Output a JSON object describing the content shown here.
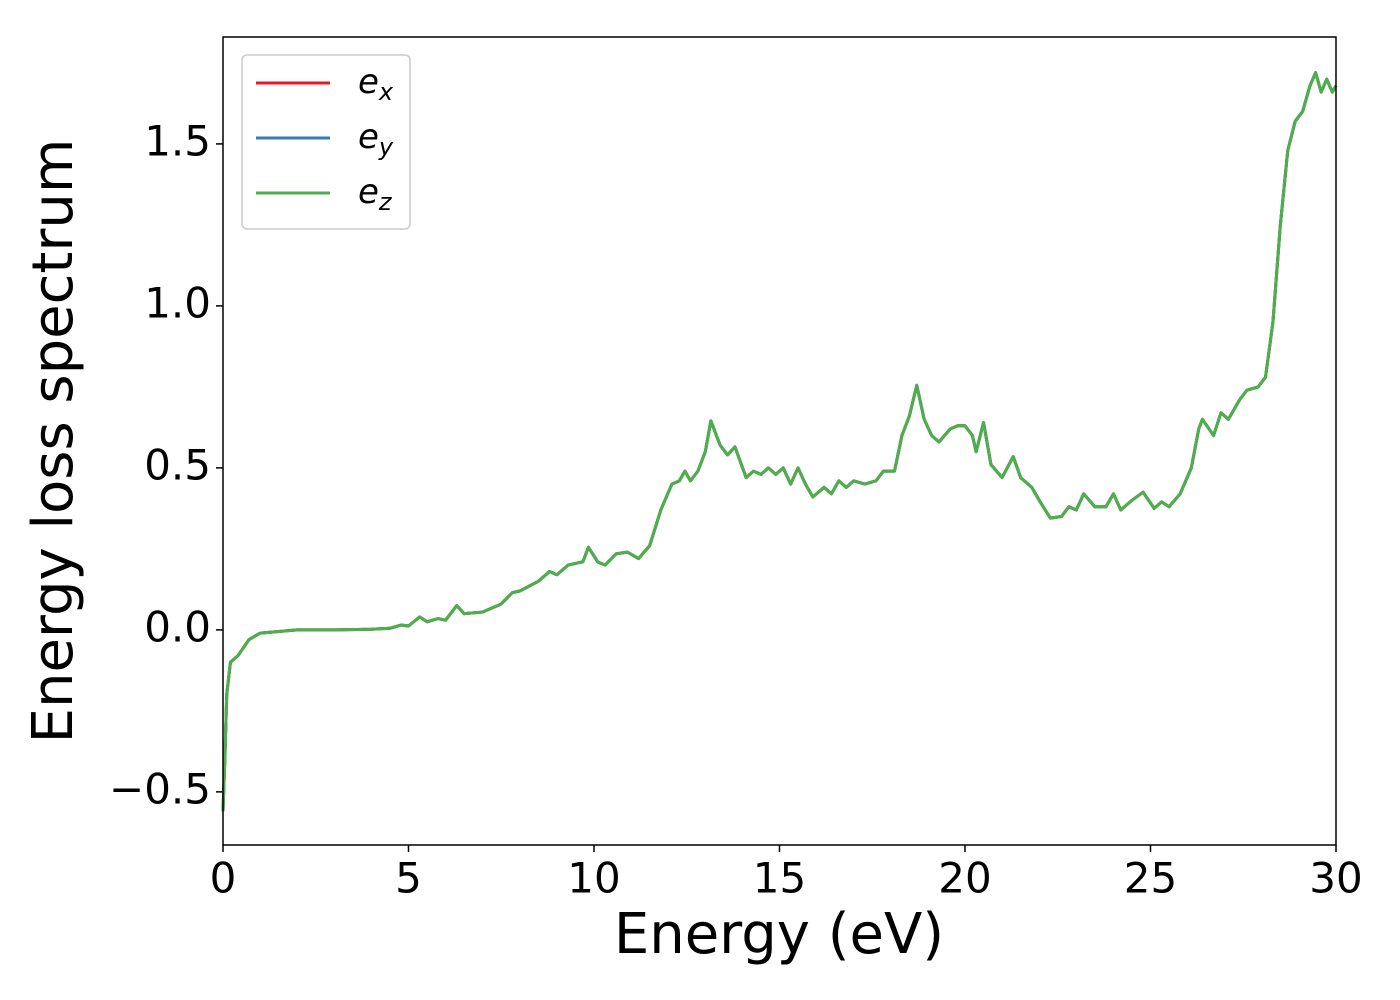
{
  "chart_data": {
    "type": "line",
    "xlabel": "Energy (eV)",
    "ylabel": "Energy loss spectrum",
    "x": [
      0,
      0.05,
      0.1,
      0.2,
      0.4,
      0.7,
      1.0,
      1.5,
      2,
      3,
      4,
      4.5,
      4.8,
      5.0,
      5.3,
      5.5,
      5.8,
      6.0,
      6.3,
      6.5,
      7,
      7.5,
      7.8,
      8.0,
      8.5,
      8.8,
      9.0,
      9.3,
      9.7,
      9.85,
      10.1,
      10.3,
      10.6,
      10.9,
      11.2,
      11.5,
      11.8,
      12.1,
      12.3,
      12.45,
      12.6,
      12.8,
      13.0,
      13.15,
      13.4,
      13.6,
      13.8,
      14.1,
      14.3,
      14.5,
      14.7,
      14.9,
      15.1,
      15.3,
      15.5,
      15.7,
      15.9,
      16.2,
      16.4,
      16.6,
      16.8,
      17.0,
      17.3,
      17.6,
      17.8,
      18.1,
      18.3,
      18.5,
      18.7,
      18.9,
      19.1,
      19.3,
      19.6,
      19.8,
      20.0,
      20.2,
      20.3,
      20.5,
      20.7,
      21.0,
      21.3,
      21.5,
      21.8,
      22.0,
      22.3,
      22.6,
      22.8,
      23.0,
      23.2,
      23.5,
      23.8,
      24.0,
      24.2,
      24.5,
      24.8,
      25.1,
      25.3,
      25.5,
      25.8,
      26.1,
      26.3,
      26.4,
      26.7,
      26.9,
      27.1,
      27.4,
      27.6,
      27.9,
      28.1,
      28.3,
      28.5,
      28.7,
      28.9,
      29.1,
      29.3,
      29.45,
      29.6,
      29.75,
      29.9,
      30.0
    ],
    "series": [
      {
        "name": "e_x",
        "color": "#e41a1c",
        "values": [
          -0.56,
          -0.4,
          -0.2,
          -0.1,
          -0.08,
          -0.03,
          -0.01,
          -0.005,
          0,
          0,
          0.002,
          0.005,
          0.015,
          0.012,
          0.04,
          0.025,
          0.035,
          0.03,
          0.075,
          0.05,
          0.055,
          0.08,
          0.115,
          0.12,
          0.15,
          0.18,
          0.17,
          0.2,
          0.21,
          0.255,
          0.21,
          0.2,
          0.235,
          0.24,
          0.22,
          0.26,
          0.37,
          0.45,
          0.46,
          0.49,
          0.46,
          0.49,
          0.55,
          0.645,
          0.57,
          0.54,
          0.565,
          0.47,
          0.49,
          0.48,
          0.5,
          0.48,
          0.5,
          0.45,
          0.5,
          0.45,
          0.41,
          0.44,
          0.42,
          0.46,
          0.44,
          0.46,
          0.45,
          0.46,
          0.49,
          0.49,
          0.6,
          0.66,
          0.755,
          0.65,
          0.6,
          0.58,
          0.62,
          0.63,
          0.63,
          0.6,
          0.55,
          0.64,
          0.51,
          0.47,
          0.535,
          0.47,
          0.44,
          0.4,
          0.345,
          0.35,
          0.38,
          0.37,
          0.42,
          0.38,
          0.38,
          0.42,
          0.37,
          0.4,
          0.425,
          0.375,
          0.395,
          0.38,
          0.42,
          0.5,
          0.62,
          0.65,
          0.6,
          0.67,
          0.65,
          0.71,
          0.74,
          0.75,
          0.78,
          0.95,
          1.25,
          1.48,
          1.57,
          1.6,
          1.68,
          1.72,
          1.66,
          1.7,
          1.66,
          1.68
        ]
      },
      {
        "name": "e_y",
        "color": "#377eb8",
        "values": [
          -0.56,
          -0.4,
          -0.2,
          -0.1,
          -0.08,
          -0.03,
          -0.01,
          -0.005,
          0,
          0,
          0.002,
          0.005,
          0.015,
          0.012,
          0.04,
          0.025,
          0.035,
          0.03,
          0.075,
          0.05,
          0.055,
          0.08,
          0.115,
          0.12,
          0.15,
          0.18,
          0.17,
          0.2,
          0.21,
          0.255,
          0.21,
          0.2,
          0.235,
          0.24,
          0.22,
          0.26,
          0.37,
          0.45,
          0.46,
          0.49,
          0.46,
          0.49,
          0.55,
          0.645,
          0.57,
          0.54,
          0.565,
          0.47,
          0.49,
          0.48,
          0.5,
          0.48,
          0.5,
          0.45,
          0.5,
          0.45,
          0.41,
          0.44,
          0.42,
          0.46,
          0.44,
          0.46,
          0.45,
          0.46,
          0.49,
          0.49,
          0.6,
          0.66,
          0.755,
          0.65,
          0.6,
          0.58,
          0.62,
          0.63,
          0.63,
          0.6,
          0.55,
          0.64,
          0.51,
          0.47,
          0.535,
          0.47,
          0.44,
          0.4,
          0.345,
          0.35,
          0.38,
          0.37,
          0.42,
          0.38,
          0.38,
          0.42,
          0.37,
          0.4,
          0.425,
          0.375,
          0.395,
          0.38,
          0.42,
          0.5,
          0.62,
          0.65,
          0.6,
          0.67,
          0.65,
          0.71,
          0.74,
          0.75,
          0.78,
          0.95,
          1.25,
          1.48,
          1.57,
          1.6,
          1.68,
          1.72,
          1.66,
          1.7,
          1.66,
          1.68
        ]
      },
      {
        "name": "e_z",
        "color": "#4daf4a",
        "values": [
          -0.56,
          -0.4,
          -0.2,
          -0.1,
          -0.08,
          -0.03,
          -0.01,
          -0.005,
          0,
          0,
          0.002,
          0.005,
          0.015,
          0.012,
          0.04,
          0.025,
          0.035,
          0.03,
          0.075,
          0.05,
          0.055,
          0.08,
          0.115,
          0.12,
          0.15,
          0.18,
          0.17,
          0.2,
          0.21,
          0.255,
          0.21,
          0.2,
          0.235,
          0.24,
          0.22,
          0.26,
          0.37,
          0.45,
          0.46,
          0.49,
          0.46,
          0.49,
          0.55,
          0.645,
          0.57,
          0.54,
          0.565,
          0.47,
          0.49,
          0.48,
          0.5,
          0.48,
          0.5,
          0.45,
          0.5,
          0.45,
          0.41,
          0.44,
          0.42,
          0.46,
          0.44,
          0.46,
          0.45,
          0.46,
          0.49,
          0.49,
          0.6,
          0.66,
          0.755,
          0.65,
          0.6,
          0.58,
          0.62,
          0.63,
          0.63,
          0.6,
          0.55,
          0.64,
          0.51,
          0.47,
          0.535,
          0.47,
          0.44,
          0.4,
          0.345,
          0.35,
          0.38,
          0.37,
          0.42,
          0.38,
          0.38,
          0.42,
          0.37,
          0.4,
          0.425,
          0.375,
          0.395,
          0.38,
          0.42,
          0.5,
          0.62,
          0.65,
          0.6,
          0.67,
          0.65,
          0.71,
          0.74,
          0.75,
          0.78,
          0.95,
          1.25,
          1.48,
          1.57,
          1.6,
          1.68,
          1.72,
          1.66,
          1.7,
          1.66,
          1.68
        ]
      }
    ],
    "xlim": [
      0,
      30
    ],
    "xticks": [
      0,
      5,
      10,
      15,
      20,
      25,
      30
    ],
    "ylim": [
      -0.664,
      1.83
    ],
    "yticks": [
      {
        "value": -0.5,
        "label": "−0.5"
      },
      {
        "value": 0,
        "label": "0.0"
      },
      0.5,
      {
        "value": 1,
        "label": "1.0"
      },
      1.5
    ],
    "legend": "upper left",
    "grid": false
  }
}
